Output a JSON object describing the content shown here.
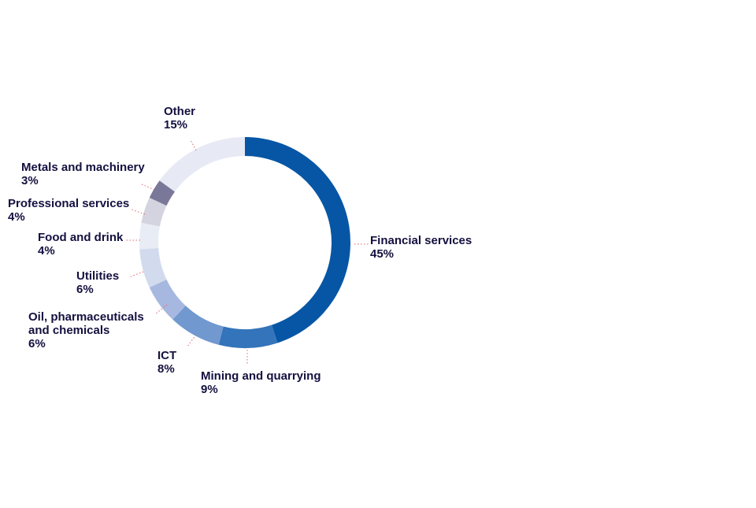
{
  "chart_data": {
    "type": "pie",
    "variant": "donut",
    "title": "",
    "slices": [
      {
        "label": "Financial services",
        "value": 45,
        "value_label": "45%",
        "color": "#0656a5",
        "label_lines": [
          "Financial services"
        ]
      },
      {
        "label": "Mining and quarrying",
        "value": 9,
        "value_label": "9%",
        "color": "#3374ba",
        "label_lines": [
          "Mining and quarrying"
        ]
      },
      {
        "label": "ICT",
        "value": 8,
        "value_label": "8%",
        "color": "#7198cf",
        "label_lines": [
          "ICT"
        ]
      },
      {
        "label": "Oil, pharmaceuticals and chemicals",
        "value": 6,
        "value_label": "6%",
        "color": "#a6b8e0",
        "label_lines": [
          "Oil, pharmaceuticals",
          "and chemicals"
        ]
      },
      {
        "label": "Utilities",
        "value": 6,
        "value_label": "6%",
        "color": "#d2daee",
        "label_lines": [
          "Utilities"
        ]
      },
      {
        "label": "Food and drink",
        "value": 4,
        "value_label": "4%",
        "color": "#e8ecf5",
        "label_lines": [
          "Food and drink"
        ]
      },
      {
        "label": "Professional services",
        "value": 4,
        "value_label": "4%",
        "color": "#d4d3e0",
        "label_lines": [
          "Professional services"
        ]
      },
      {
        "label": "Metals and machinery",
        "value": 3,
        "value_label": "3%",
        "color": "#7a7898",
        "label_lines": [
          "Metals and machinery"
        ]
      },
      {
        "label": "Other",
        "value": 15,
        "value_label": "15%",
        "color": "#e7e9f5",
        "label_lines": [
          "Other"
        ]
      }
    ],
    "start_angle": "top",
    "direction": "clockwise",
    "legend": "none"
  }
}
